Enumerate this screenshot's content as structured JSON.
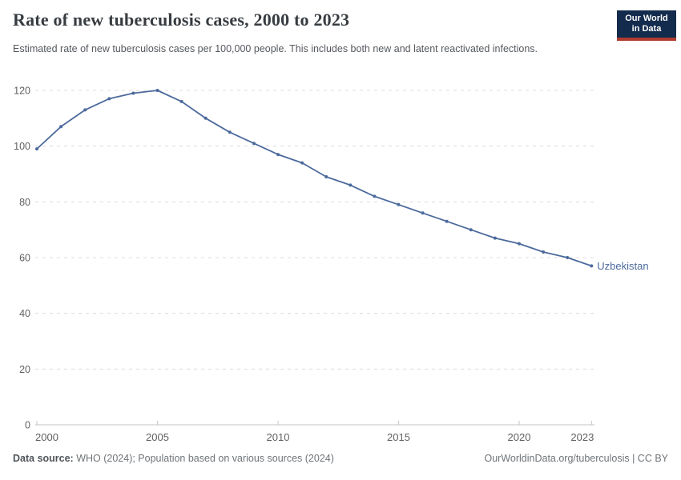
{
  "header": {
    "title": "Rate of new tuberculosis cases, 2000 to 2023",
    "subtitle": "Estimated rate of new tuberculosis cases per 100,000 people. This includes both new and latent reactivated infections.",
    "logo": {
      "line1": "Our World",
      "line2": "in Data",
      "bg_color": "#132b4d",
      "accent_color": "#b13b2e"
    }
  },
  "chart_data": {
    "type": "line",
    "title": "Rate of new tuberculosis cases, 2000 to 2023",
    "xlabel": "",
    "ylabel": "",
    "x": [
      2000,
      2001,
      2002,
      2003,
      2004,
      2005,
      2006,
      2007,
      2008,
      2009,
      2010,
      2011,
      2012,
      2013,
      2014,
      2015,
      2016,
      2017,
      2018,
      2019,
      2020,
      2021,
      2022,
      2023
    ],
    "series": [
      {
        "name": "Uzbekistan",
        "color": "#4c6a9c",
        "values": [
          99,
          107,
          113,
          117,
          119,
          120,
          116,
          110,
          105,
          101,
          97,
          94,
          89,
          86,
          82,
          79,
          76,
          73,
          70,
          67,
          65,
          62,
          60,
          57
        ]
      }
    ],
    "x_ticks": [
      2000,
      2005,
      2010,
      2015,
      2020,
      2023
    ],
    "y_ticks": [
      0,
      20,
      40,
      60,
      80,
      100,
      120
    ],
    "xlim": [
      2000,
      2023
    ],
    "ylim": [
      0,
      120
    ],
    "grid": "horizontal-dashed",
    "legend": "end-of-line-label",
    "grid_color": "#dcdcdc",
    "axis_color": "#c6c6c6",
    "tick_label_color": "#606060"
  },
  "footer": {
    "source_label": "Data source:",
    "source_text": " WHO (2024); Population based on various sources (2024)",
    "credit": "OurWorldinData.org/tuberculosis | CC BY"
  }
}
